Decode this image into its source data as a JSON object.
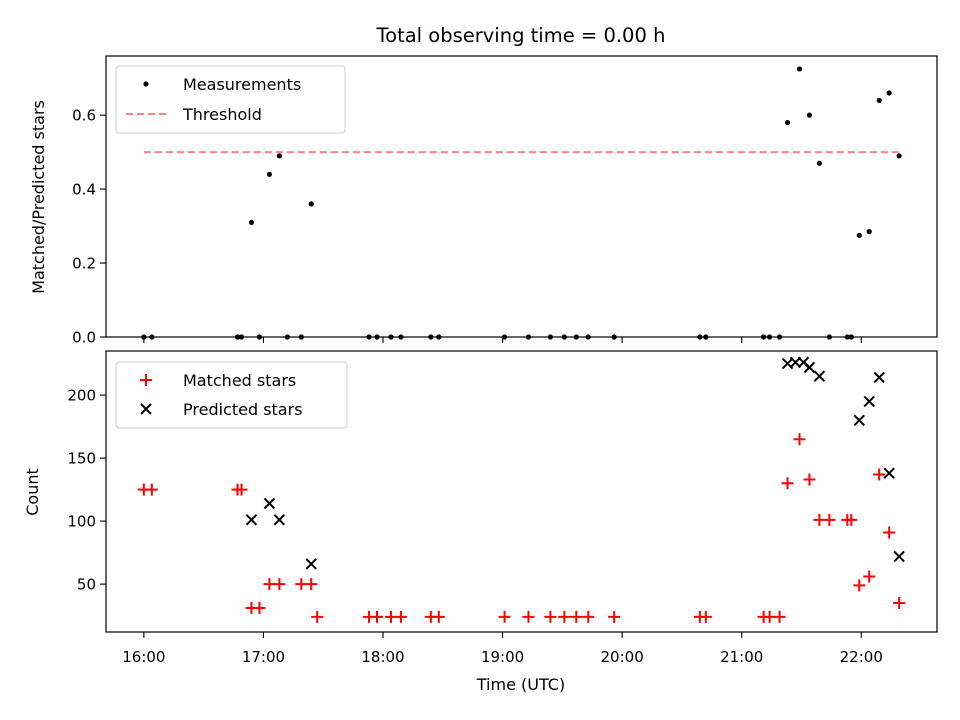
{
  "chart_data": {
    "type": "scatter",
    "title": "Total observing time = 0.00 h",
    "xlabel": "Time (UTC)",
    "xlim": [
      "15:41",
      "22:38"
    ],
    "x_ticks": [
      "16:00",
      "17:00",
      "18:00",
      "19:00",
      "20:00",
      "21:00",
      "22:00"
    ],
    "panels": [
      {
        "id": "ratio",
        "ylabel": "Matched/Predicted stars",
        "ylim": [
          0,
          0.76
        ],
        "y_ticks": [
          "0.0",
          "0.2",
          "0.4",
          "0.6"
        ],
        "legend_position": "upper-left",
        "series": [
          {
            "name": "Measurements",
            "kind": "scatter",
            "marker": "dot",
            "color": "#000000",
            "x": [
              "16:00",
              "16:04",
              "16:47",
              "16:49",
              "16:54",
              "16:58",
              "17:03",
              "17:08",
              "17:12",
              "17:19",
              "17:24",
              "17:53",
              "17:57",
              "18:04",
              "18:09",
              "18:24",
              "18:28",
              "19:01",
              "19:13",
              "19:24",
              "19:31",
              "19:37",
              "19:43",
              "19:56",
              "20:39",
              "20:42",
              "21:11",
              "21:14",
              "21:19",
              "21:23",
              "21:29",
              "21:34",
              "21:39",
              "21:44",
              "21:53",
              "21:55",
              "21:59",
              "22:04",
              "22:09",
              "22:14",
              "22:19"
            ],
            "y": [
              0,
              0,
              0,
              0,
              0.31,
              0,
              0.44,
              0.49,
              0,
              0,
              0.36,
              0,
              0,
              0,
              0,
              0,
              0,
              0,
              0,
              0,
              0,
              0,
              0,
              0,
              0,
              0,
              0,
              0,
              0,
              0.58,
              0.725,
              0.6,
              0.47,
              0,
              0,
              0,
              0.275,
              0.285,
              0.64,
              0.66,
              0.49
            ]
          },
          {
            "name": "Threshold",
            "kind": "line",
            "style": "dashed",
            "color": "#ff8080",
            "x": [
              "16:00",
              "22:19"
            ],
            "y": [
              0.5,
              0.5
            ]
          }
        ]
      },
      {
        "id": "counts",
        "ylabel": "Count",
        "ylim": [
          12,
          235
        ],
        "y_ticks": [
          "50",
          "100",
          "150",
          "200"
        ],
        "legend_position": "upper-left",
        "series": [
          {
            "name": "Matched stars",
            "kind": "scatter",
            "marker": "plus",
            "color": "#ff0000",
            "x": [
              "16:00",
              "16:04",
              "16:47",
              "16:49",
              "16:54",
              "16:58",
              "17:03",
              "17:08",
              "17:19",
              "17:24",
              "17:27",
              "17:53",
              "17:57",
              "18:04",
              "18:09",
              "18:24",
              "18:28",
              "19:01",
              "19:13",
              "19:24",
              "19:31",
              "19:37",
              "19:43",
              "19:56",
              "20:39",
              "20:42",
              "21:11",
              "21:14",
              "21:19",
              "21:23",
              "21:29",
              "21:34",
              "21:39",
              "21:44",
              "21:53",
              "21:55",
              "21:59",
              "22:04",
              "22:09",
              "22:14",
              "22:19"
            ],
            "y": [
              125,
              125,
              125,
              125,
              31,
              31,
              50,
              50,
              50,
              50,
              24,
              24,
              24,
              24,
              24,
              24,
              24,
              24,
              24,
              24,
              24,
              24,
              24,
              24,
              24,
              24,
              24,
              24,
              24,
              130,
              165,
              133,
              101,
              101,
              101,
              101,
              49,
              56,
              137,
              91,
              35
            ]
          },
          {
            "name": "Predicted stars",
            "kind": "scatter",
            "marker": "x",
            "color": "#000000",
            "x": [
              "16:54",
              "17:03",
              "17:08",
              "17:24",
              "21:23",
              "21:27",
              "21:31",
              "21:34",
              "21:39",
              "21:59",
              "22:04",
              "22:09",
              "22:14",
              "22:19"
            ],
            "y": [
              101,
              114,
              101,
              66,
              225,
              226,
              226,
              222,
              215,
              180,
              195,
              214,
              138,
              72
            ]
          }
        ]
      }
    ]
  }
}
